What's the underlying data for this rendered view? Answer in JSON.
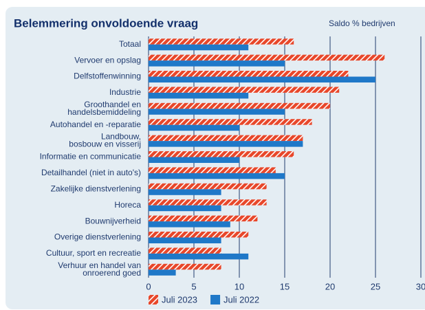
{
  "chart_data": {
    "type": "barh",
    "title": "Belemmering onvoldoende vraag",
    "subtitle": "Saldo % bedrijven",
    "categories": [
      "Totaal",
      "Vervoer en opslag",
      "Delfstoffenwinning",
      "Industrie",
      "Groothandel en\nhandelsbemiddeling",
      "Autohandel en -reparatie",
      "Landbouw,\nbosbouw en visserij",
      "Informatie en communicatie",
      "Detailhandel (niet in auto's)",
      "Zakelijke dienstverlening",
      "Horeca",
      "Bouwnijverheid",
      "Overige dienstverlening",
      "Cultuur, sport en recreatie",
      "Verhuur en handel van\nonroerend goed"
    ],
    "series": [
      {
        "name": "Juli 2023",
        "color": "#e8472a",
        "hatch": true,
        "values": [
          16,
          26,
          22,
          21,
          20,
          18,
          17,
          16,
          14,
          13,
          13,
          12,
          11,
          8,
          8
        ]
      },
      {
        "name": "Juli 2022",
        "color": "#1f78c8",
        "hatch": false,
        "values": [
          11,
          15,
          25,
          11,
          15,
          10,
          17,
          10,
          15,
          8,
          8,
          9,
          8,
          11,
          3
        ]
      }
    ],
    "xlim": [
      0,
      30
    ],
    "xticks": [
      0,
      5,
      10,
      15,
      20,
      25,
      30
    ],
    "grid": true
  }
}
